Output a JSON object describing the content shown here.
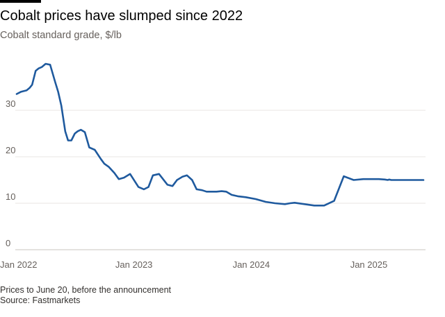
{
  "header": {
    "title": "Cobalt prices have slumped since 2022",
    "subtitle": "Cobalt standard grade, $/lb"
  },
  "footer": {
    "note": "Prices to June 20, before the announcement",
    "source": "Source: Fastmarkets"
  },
  "colors": {
    "line": "#1f5a9e",
    "grid": "#e9e6e3",
    "text": "#66605c",
    "baseline": "#c9c4bf"
  },
  "chart_data": {
    "type": "line",
    "title": "Cobalt prices have slumped since 2022",
    "subtitle": "Cobalt standard grade, $/lb",
    "xlabel": "",
    "ylabel": "",
    "x_ticks": [
      "Jan 2022",
      "Jan 2023",
      "Jan 2024",
      "Jan 2025"
    ],
    "y_ticks": [
      0,
      10,
      20,
      30
    ],
    "xlim": [
      "2022-01-01",
      "2025-06-20"
    ],
    "ylim": [
      0,
      40
    ],
    "grid": true,
    "legend": "none",
    "series": [
      {
        "x": [
          "2022-01-01",
          "2022-01-15",
          "2022-02-01",
          "2022-02-10",
          "2022-02-18",
          "2022-03-01",
          "2022-03-10",
          "2022-03-20",
          "2022-04-01",
          "2022-04-15",
          "2022-05-01",
          "2022-05-10",
          "2022-05-20",
          "2022-06-01",
          "2022-06-10",
          "2022-06-20",
          "2022-07-01",
          "2022-07-10",
          "2022-07-20",
          "2022-08-01",
          "2022-08-15",
          "2022-09-01",
          "2022-09-20",
          "2022-10-01",
          "2022-10-15",
          "2022-11-01",
          "2022-11-15",
          "2022-12-01",
          "2022-12-20",
          "2023-01-15",
          "2023-02-01",
          "2023-02-15",
          "2023-03-01",
          "2023-03-20",
          "2023-04-15",
          "2023-05-01",
          "2023-05-15",
          "2023-06-01",
          "2023-06-15",
          "2023-07-01",
          "2023-07-15",
          "2023-08-01",
          "2023-08-15",
          "2023-09-01",
          "2023-09-15",
          "2023-10-01",
          "2023-10-15",
          "2023-11-01",
          "2023-11-20",
          "2023-12-15",
          "2024-01-15",
          "2024-02-15",
          "2024-03-15",
          "2024-04-15",
          "2024-05-01",
          "2024-05-15",
          "2024-06-15",
          "2024-07-15",
          "2024-08-15",
          "2024-09-15",
          "2024-10-15",
          "2024-11-15",
          "2024-12-15",
          "2025-01-15",
          "2025-02-01",
          "2025-02-20",
          "2025-03-01",
          "2025-03-05",
          "2025-03-12",
          "2025-03-20",
          "2025-04-15",
          "2025-05-15",
          "2025-06-20"
        ],
        "y": [
          33.5,
          34,
          34.3,
          34.8,
          35.5,
          38.5,
          39,
          39.3,
          40,
          39.8,
          36,
          34,
          31,
          25.5,
          23.5,
          23.5,
          25,
          25.5,
          25.8,
          25.3,
          22,
          21.5,
          19.5,
          18.5,
          17.8,
          16.5,
          15.2,
          15.5,
          16.3,
          13.5,
          13,
          13.5,
          16,
          16.3,
          14,
          13.7,
          15,
          15.7,
          16,
          15,
          13,
          12.8,
          12.5,
          12.5,
          12.5,
          12.6,
          12.5,
          11.8,
          11.5,
          11.3,
          10.9,
          10.3,
          10,
          9.8,
          10,
          10.1,
          9.8,
          9.5,
          9.5,
          10.5,
          15.8,
          15,
          15.2,
          15.2,
          15.2,
          15.1,
          15,
          15.1,
          15,
          15,
          15,
          15,
          15
        ]
      }
    ]
  }
}
